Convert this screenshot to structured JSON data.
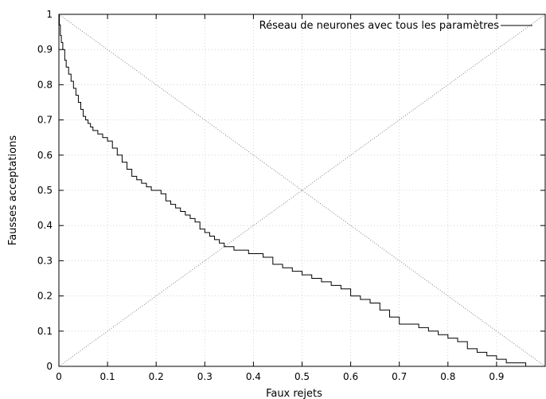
{
  "chart_data": {
    "type": "line",
    "title": "",
    "xlabel": "Faux rejets",
    "ylabel": "Fausses acceptations",
    "xlim": [
      0,
      1
    ],
    "ylim": [
      0,
      1
    ],
    "x_ticks": [
      "0",
      "0.1",
      "0.2",
      "0.3",
      "0.4",
      "0.5",
      "0.6",
      "0.7",
      "0.8",
      "0.9"
    ],
    "y_ticks": [
      "0",
      "0.1",
      "0.2",
      "0.3",
      "0.4",
      "0.5",
      "0.6",
      "0.7",
      "0.8",
      "0.9",
      "1"
    ],
    "grid": true,
    "legend_position": "top-right",
    "series": [
      {
        "name": "Réseau de neurones avec tous les paramètres",
        "color": "#000000",
        "style": "solid-step",
        "x": [
          0,
          0.001,
          0.003,
          0.005,
          0.008,
          0.012,
          0.015,
          0.02,
          0.025,
          0.03,
          0.035,
          0.04,
          0.045,
          0.05,
          0.055,
          0.06,
          0.065,
          0.07,
          0.08,
          0.09,
          0.1,
          0.11,
          0.12,
          0.13,
          0.14,
          0.15,
          0.16,
          0.17,
          0.18,
          0.19,
          0.2,
          0.21,
          0.22,
          0.23,
          0.24,
          0.25,
          0.26,
          0.27,
          0.28,
          0.29,
          0.3,
          0.31,
          0.32,
          0.33,
          0.34,
          0.35,
          0.36,
          0.37,
          0.38,
          0.39,
          0.4,
          0.42,
          0.44,
          0.46,
          0.48,
          0.5,
          0.52,
          0.54,
          0.56,
          0.58,
          0.6,
          0.62,
          0.64,
          0.66,
          0.68,
          0.7,
          0.72,
          0.74,
          0.76,
          0.78,
          0.8,
          0.82,
          0.84,
          0.86,
          0.88,
          0.9,
          0.92,
          0.94,
          0.96,
          0.98,
          0.99
        ],
        "y": [
          1.0,
          0.97,
          0.94,
          0.92,
          0.9,
          0.87,
          0.85,
          0.83,
          0.81,
          0.79,
          0.77,
          0.75,
          0.73,
          0.71,
          0.7,
          0.69,
          0.68,
          0.67,
          0.66,
          0.65,
          0.64,
          0.62,
          0.6,
          0.58,
          0.56,
          0.54,
          0.53,
          0.52,
          0.51,
          0.5,
          0.5,
          0.49,
          0.47,
          0.46,
          0.45,
          0.44,
          0.43,
          0.42,
          0.41,
          0.39,
          0.38,
          0.37,
          0.36,
          0.35,
          0.34,
          0.34,
          0.33,
          0.33,
          0.33,
          0.32,
          0.32,
          0.31,
          0.29,
          0.28,
          0.27,
          0.26,
          0.25,
          0.24,
          0.23,
          0.22,
          0.2,
          0.19,
          0.18,
          0.16,
          0.14,
          0.12,
          0.12,
          0.11,
          0.1,
          0.09,
          0.08,
          0.07,
          0.05,
          0.04,
          0.03,
          0.02,
          0.01,
          0.01,
          0.0,
          0.0,
          0.0
        ]
      },
      {
        "name": "",
        "color": "#666666",
        "style": "dotted",
        "x": [
          0,
          1
        ],
        "y": [
          1,
          0
        ]
      },
      {
        "name": "",
        "color": "#666666",
        "style": "dotted",
        "x": [
          0,
          1
        ],
        "y": [
          0,
          1
        ]
      }
    ]
  }
}
